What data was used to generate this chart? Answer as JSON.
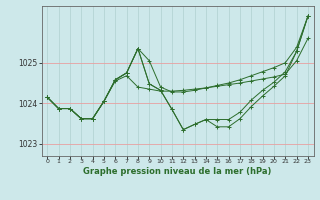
{
  "bg_color": "#cde8ea",
  "grid_h_color": "#e8a0a0",
  "grid_v_color": "#b0d0d0",
  "line_color": "#2d6e2d",
  "xlabel": "Graphe pression niveau de la mer (hPa)",
  "ylim": [
    1022.7,
    1026.4
  ],
  "xlim": [
    -0.5,
    23.5
  ],
  "yticks": [
    1023,
    1024,
    1025
  ],
  "xticks": [
    0,
    1,
    2,
    3,
    4,
    5,
    6,
    7,
    8,
    9,
    10,
    11,
    12,
    13,
    14,
    15,
    16,
    17,
    18,
    19,
    20,
    21,
    22,
    23
  ],
  "series": [
    [
      1024.15,
      1023.87,
      1023.87,
      1023.62,
      1023.62,
      1024.05,
      1024.55,
      1024.68,
      1024.4,
      1024.35,
      1024.3,
      1024.3,
      1024.32,
      1024.35,
      1024.38,
      1024.42,
      1024.46,
      1024.5,
      1024.55,
      1024.6,
      1024.65,
      1024.72,
      1025.05,
      1025.6
    ],
    [
      1024.15,
      1023.87,
      1023.87,
      1023.62,
      1023.62,
      1024.05,
      1024.58,
      1024.75,
      1025.35,
      1025.05,
      1024.4,
      1024.28,
      1024.28,
      1024.32,
      1024.38,
      1024.44,
      1024.5,
      1024.58,
      1024.68,
      1024.78,
      1024.88,
      1025.0,
      1025.38,
      1026.15
    ],
    [
      1024.15,
      1023.87,
      1023.87,
      1023.62,
      1023.62,
      1024.05,
      1024.58,
      1024.75,
      1025.35,
      1024.48,
      1024.32,
      1023.85,
      1023.35,
      1023.48,
      1023.6,
      1023.42,
      1023.42,
      1023.62,
      1023.92,
      1024.18,
      1024.42,
      1024.68,
      1025.28,
      1026.15
    ],
    [
      1024.15,
      1023.87,
      1023.87,
      1023.62,
      1023.62,
      1024.05,
      1024.58,
      1024.75,
      1025.35,
      1024.48,
      1024.32,
      1023.85,
      1023.35,
      1023.48,
      1023.6,
      1023.6,
      1023.6,
      1023.78,
      1024.08,
      1024.32,
      1024.52,
      1024.78,
      1025.28,
      1026.15
    ]
  ]
}
